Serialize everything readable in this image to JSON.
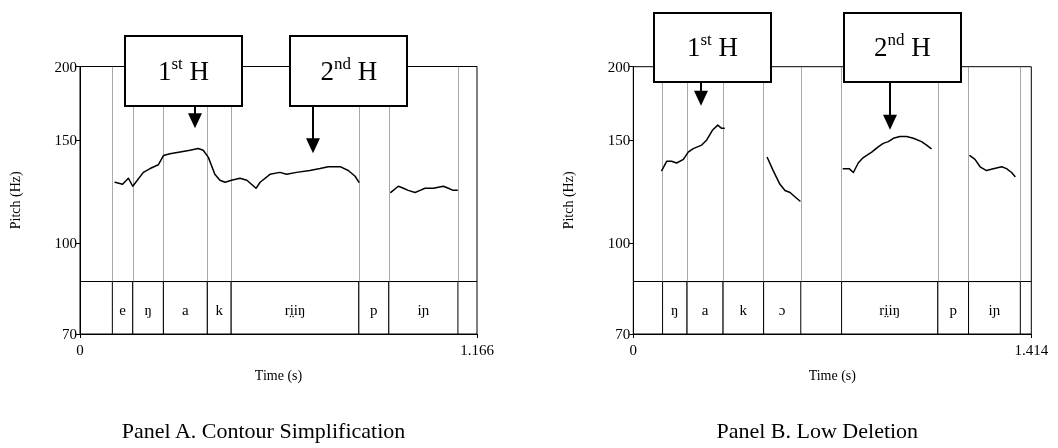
{
  "chart_data": [
    {
      "type": "line",
      "title": "Panel A. Contour Simplification",
      "xlabel": "Time (s)",
      "ylabel": "Pitch (Hz)",
      "xlim": [
        0,
        1.166
      ],
      "xticks": [
        0,
        1.166
      ],
      "ylim": [
        70,
        200
      ],
      "yticks": [
        70,
        100,
        150,
        200
      ],
      "log": "y",
      "grid": false,
      "marker": "none",
      "line_style": "solid",
      "series": [
        {
          "color": "#000000",
          "x": [
            0.103,
            0.125,
            0.142,
            0.155,
            0.186,
            0.206,
            0.23,
            0.245,
            0.264,
            0.294,
            0.323,
            0.347,
            0.362,
            0.377,
            0.396,
            0.411,
            0.426,
            0.445,
            0.47,
            0.49,
            0.517,
            0.529,
            0.558,
            0.587,
            0.607,
            0.636,
            0.675,
            0.705,
            0.729,
            0.764,
            0.788,
            0.808,
            0.819
          ],
          "values": [
            127,
            126,
            129,
            125,
            132,
            134,
            136,
            141,
            142,
            143,
            144,
            145,
            144,
            140,
            131,
            128,
            127,
            128,
            129,
            128,
            124,
            127,
            131,
            132,
            131,
            132,
            133,
            134,
            135,
            135,
            133,
            130,
            127
          ]
        },
        {
          "color": "#000000",
          "x": [
            0.913,
            0.935,
            0.95,
            0.964,
            0.984,
            0.999,
            1.013,
            1.038,
            1.067,
            1.082,
            1.096,
            1.108
          ],
          "values": [
            122,
            125,
            124,
            123,
            122,
            123,
            124,
            124,
            125,
            124,
            123,
            123
          ]
        }
      ],
      "bands": [
        {
          "axis": "x",
          "from": 0.095,
          "to": 0.155,
          "label": "e",
          "color": "#ffffff"
        },
        {
          "axis": "x",
          "from": 0.155,
          "to": 0.245,
          "label": "ŋ",
          "color": "#ffffff"
        },
        {
          "axis": "x",
          "from": 0.245,
          "to": 0.374,
          "label": "a",
          "color": "#ffffff"
        },
        {
          "axis": "x",
          "from": 0.374,
          "to": 0.444,
          "label": "k",
          "color": "#ffffff"
        },
        {
          "axis": "x",
          "from": 0.444,
          "to": 0.819,
          "label": "ri̤iŋ",
          "color": "#ffffff"
        },
        {
          "axis": "x",
          "from": 0.819,
          "to": 0.907,
          "label": "p",
          "color": "#ffffff"
        },
        {
          "axis": "x",
          "from": 0.907,
          "to": 1.11,
          "label": "iɲ",
          "color": "#ffffff"
        }
      ],
      "ref_lines": [
        {
          "axis": "y",
          "value": 86,
          "line_style": "solid"
        }
      ],
      "annotations": [
        "1$^{st}$ H",
        "2$^{nd}$ H"
      ]
    },
    {
      "type": "line",
      "title": "Panel B. Low Deletion",
      "xlabel": "Time (s)",
      "ylabel": "Pitch (Hz)",
      "xlim": [
        0,
        1.414
      ],
      "xticks": [
        0,
        1.414
      ],
      "ylim": [
        70,
        200
      ],
      "yticks": [
        70,
        100,
        150,
        200
      ],
      "log": "y",
      "grid": false,
      "marker": "none",
      "line_style": "solid",
      "series": [
        {
          "color": "#000000",
          "x": [
            0.101,
            0.119,
            0.136,
            0.154,
            0.178,
            0.195,
            0.213,
            0.243,
            0.261,
            0.282,
            0.3,
            0.314,
            0.323
          ],
          "values": [
            133,
            138,
            138,
            137,
            139,
            143,
            145,
            147,
            150,
            156,
            159,
            157,
            157
          ]
        },
        {
          "color": "#000000",
          "x": [
            0.476,
            0.497,
            0.521,
            0.539,
            0.557,
            0.574,
            0.592
          ],
          "values": [
            140,
            133,
            126,
            123,
            122,
            120,
            118
          ]
        },
        {
          "color": "#000000",
          "x": [
            0.746,
            0.767,
            0.782,
            0.799,
            0.817,
            0.847,
            0.87,
            0.888,
            0.906,
            0.924,
            0.947,
            0.971,
            0.995,
            1.024,
            1.042,
            1.058
          ],
          "values": [
            134,
            134,
            132,
            137,
            140,
            143,
            146,
            148,
            149,
            151,
            152,
            152,
            151,
            149,
            147,
            145
          ]
        },
        {
          "color": "#000000",
          "x": [
            1.196,
            1.214,
            1.232,
            1.255,
            1.279,
            1.309,
            1.326,
            1.344,
            1.356
          ],
          "values": [
            141,
            139,
            135,
            133,
            134,
            135,
            134,
            132,
            130
          ]
        }
      ],
      "bands": [
        {
          "axis": "x",
          "from": 0.104,
          "to": 0.191,
          "label": "ŋ",
          "color": "#ffffff"
        },
        {
          "axis": "x",
          "from": 0.191,
          "to": 0.319,
          "label": "a",
          "color": "#ffffff"
        },
        {
          "axis": "x",
          "from": 0.319,
          "to": 0.463,
          "label": "k",
          "color": "#ffffff"
        },
        {
          "axis": "x",
          "from": 0.463,
          "to": 0.595,
          "label": "ɔ",
          "color": "#ffffff"
        },
        {
          "axis": "x",
          "from": 0.74,
          "to": 1.082,
          "label": "ri̤iŋ",
          "color": "#ffffff"
        },
        {
          "axis": "x",
          "from": 1.082,
          "to": 1.191,
          "label": "p",
          "color": "#ffffff"
        },
        {
          "axis": "x",
          "from": 1.191,
          "to": 1.375,
          "label": "iɲ",
          "color": "#ffffff"
        }
      ],
      "ref_lines": [
        {
          "axis": "y",
          "value": 86,
          "line_style": "solid"
        }
      ],
      "annotations": [
        "1$^{st}$ H",
        "2$^{nd}$ H"
      ]
    }
  ]
}
